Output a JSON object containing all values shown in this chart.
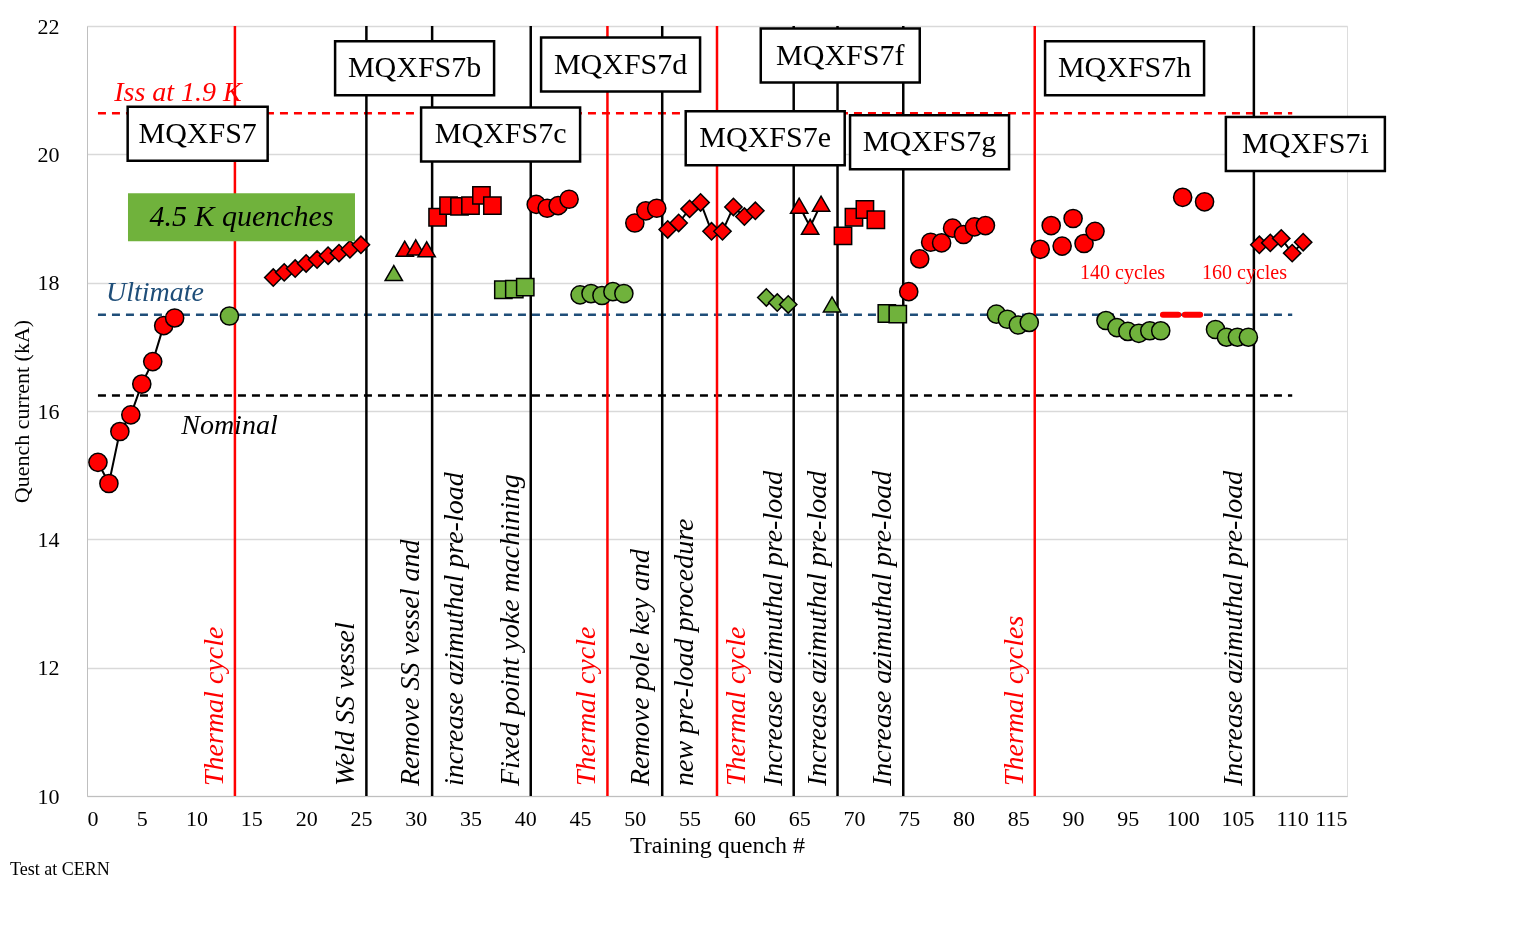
{
  "chart_data": {
    "type": "scatter",
    "xlabel": "Training quench #",
    "ylabel": "Quench current (kA)",
    "xlim": [
      0,
      115
    ],
    "xticks": [
      0,
      5,
      10,
      15,
      20,
      25,
      30,
      35,
      40,
      45,
      50,
      55,
      60,
      65,
      70,
      75,
      80,
      85,
      90,
      95,
      100,
      105,
      110,
      115
    ],
    "ylim": [
      10,
      22
    ],
    "yticks": [
      10,
      12,
      14,
      16,
      18,
      20,
      22
    ],
    "grid": "y",
    "series": [
      {
        "type": "line",
        "marker": "circle",
        "color": "#ff0000",
        "x": [
          1,
          2,
          3,
          4,
          5,
          6,
          7,
          8
        ],
        "values": [
          15.2,
          14.87,
          15.68,
          15.94,
          16.42,
          16.77,
          17.33,
          17.45
        ]
      },
      {
        "marker": "diamond",
        "color": "#ff0000",
        "x": [
          17,
          18,
          19,
          20,
          21,
          22,
          23,
          24,
          25
        ],
        "values": [
          18.08,
          18.16,
          18.22,
          18.3,
          18.36,
          18.42,
          18.46,
          18.52,
          18.59
        ]
      },
      {
        "marker": "triangle",
        "color": "#ff0000",
        "x": [
          29,
          30,
          31
        ],
        "values": [
          18.53,
          18.55,
          18.52
        ]
      },
      {
        "marker": "square",
        "color": "#ff0000",
        "x": [
          32,
          33,
          34,
          35,
          36,
          37,
          69,
          70,
          71,
          72
        ],
        "values": [
          19.02,
          19.2,
          19.19,
          19.2,
          19.36,
          19.2,
          18.73,
          19.02,
          19.14,
          18.98
        ]
      },
      {
        "marker": "circle",
        "color": "#ff0000",
        "x": [
          41,
          42,
          43,
          44,
          50,
          51,
          52,
          75,
          76,
          77,
          78,
          79,
          80,
          81,
          82,
          87,
          88,
          89,
          90,
          91,
          92,
          100,
          102
        ],
        "values": [
          19.22,
          19.16,
          19.2,
          19.3,
          18.93,
          19.12,
          19.16,
          17.86,
          18.37,
          18.63,
          18.62,
          18.85,
          18.75,
          18.87,
          18.89,
          18.52,
          18.89,
          18.57,
          19.0,
          18.61,
          18.8,
          19.33,
          19.26
        ]
      },
      {
        "type": "line",
        "marker": "diamond",
        "color": "#ff0000",
        "x": [
          53,
          54,
          55,
          56,
          57,
          58,
          59,
          60,
          61
        ],
        "values": [
          18.83,
          18.93,
          19.15,
          19.25,
          18.8,
          18.8,
          19.18,
          19.03,
          19.12
        ]
      },
      {
        "type": "line",
        "marker": "triangle",
        "color": "#ff0000",
        "x": [
          65,
          66,
          67
        ],
        "values": [
          19.2,
          18.87,
          19.23
        ]
      },
      {
        "type": "line",
        "marker": "diamond",
        "color": "#ff0000",
        "x": [
          107,
          108,
          109,
          110,
          111
        ],
        "values": [
          18.59,
          18.62,
          18.69,
          18.46,
          18.63
        ]
      },
      {
        "marker": "circle",
        "color": "#70b23c",
        "x": [
          13,
          45,
          46,
          47,
          48,
          49,
          83,
          84,
          85,
          86,
          93,
          94,
          95,
          96,
          97,
          98,
          103,
          104,
          105,
          106
        ],
        "values": [
          17.48,
          17.81,
          17.83,
          17.8,
          17.86,
          17.83,
          17.51,
          17.43,
          17.34,
          17.38,
          17.41,
          17.3,
          17.24,
          17.21,
          17.25,
          17.25,
          17.27,
          17.15,
          17.15,
          17.15
        ]
      },
      {
        "marker": "triangle",
        "color": "#70b23c",
        "x": [
          28,
          68
        ],
        "values": [
          18.15,
          17.66
        ]
      },
      {
        "marker": "square",
        "color": "#70b23c",
        "x": [
          38,
          39,
          40,
          73,
          74
        ],
        "values": [
          17.89,
          17.9,
          17.93,
          17.52,
          17.51
        ]
      },
      {
        "marker": "diamond",
        "color": "#70b23c",
        "x": [
          62,
          63,
          64
        ],
        "values": [
          17.77,
          17.69,
          17.66
        ]
      },
      {
        "type": "line",
        "marker": "none",
        "color": "#ff0000",
        "x": [
          98.2,
          99.6,
          99.8,
          100.2,
          101.6
        ],
        "values": [
          17.5,
          17.5,
          null,
          17.5,
          17.5
        ]
      }
    ],
    "ref_lines": [
      {
        "axis": "y",
        "value": 20.64,
        "label": "Iss at 1.9 K",
        "color": "#ff0000",
        "line_style": "dashed"
      },
      {
        "axis": "y",
        "value": 17.5,
        "label": "Ultimate",
        "color": "#1f4e79",
        "line_style": "dashed"
      },
      {
        "axis": "y",
        "value": 16.24,
        "label": "Nominal",
        "color": "#000000",
        "line_style": "dashed"
      },
      {
        "axis": "x",
        "value": 13.5,
        "label": "Thermal cycle",
        "color": "#ff0000",
        "line_style": "solid"
      },
      {
        "axis": "x",
        "value": 25.5,
        "label": "Weld SS vessel",
        "color": "#000000",
        "line_style": "solid"
      },
      {
        "axis": "x",
        "value": 31.5,
        "label": "Remove SS vessel and\nincrease azimuthal pre-load",
        "color": "#000000",
        "line_style": "solid"
      },
      {
        "axis": "x",
        "value": 40.5,
        "label": "Fixed point yoke machining",
        "color": "#000000",
        "line_style": "solid"
      },
      {
        "axis": "x",
        "value": 47.5,
        "label": "Thermal cycle",
        "color": "#ff0000",
        "line_style": "solid"
      },
      {
        "axis": "x",
        "value": 52.5,
        "label": "Remove pole key and\nnew pre-load procedure",
        "color": "#000000",
        "line_style": "solid"
      },
      {
        "axis": "x",
        "value": 57.5,
        "label": "Thermal cycle",
        "color": "#ff0000",
        "line_style": "solid"
      },
      {
        "axis": "x",
        "value": 64.5,
        "label": "Increase azimuthal pre-load",
        "color": "#000000",
        "line_style": "solid"
      },
      {
        "axis": "x",
        "value": 68.5,
        "label": "Increase azimuthal pre-load",
        "color": "#000000",
        "line_style": "solid"
      },
      {
        "axis": "x",
        "value": 74.5,
        "label": "Increase azimuthal pre-load",
        "color": "#000000",
        "line_style": "solid"
      },
      {
        "axis": "x",
        "value": 86.5,
        "label": "Thermal cycles",
        "color": "#ff0000",
        "line_style": "solid"
      },
      {
        "axis": "x",
        "value": 106.5,
        "label": "Increase azimuthal pre-load",
        "color": "#000000",
        "line_style": "solid"
      }
    ],
    "annotations": [
      "MQXFS7",
      "MQXFS7b",
      "MQXFS7c",
      "MQXFS7d",
      "MQXFS7e",
      "MQXFS7f",
      "MQXFS7g",
      "MQXFS7h",
      "MQXFS7i",
      "4.5 K quenches",
      {
        "text": "140 cycles",
        "x": 98.9,
        "y": 17.5
      },
      {
        "text": "160 cycles",
        "x": 100.9,
        "y": 17.5
      },
      "Test at CERN"
    ]
  }
}
